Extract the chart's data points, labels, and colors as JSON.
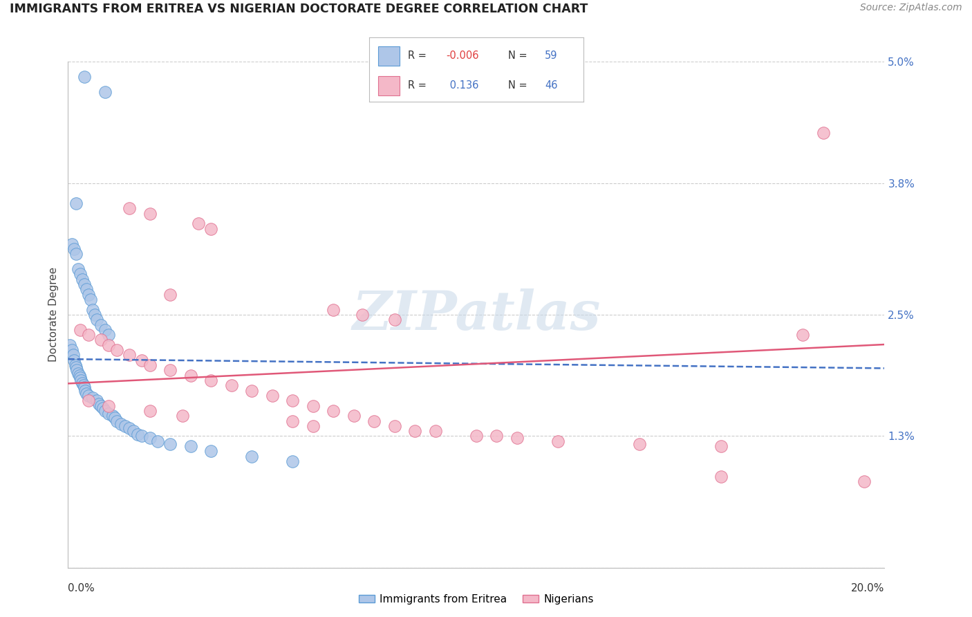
{
  "title": "IMMIGRANTS FROM ERITREA VS NIGERIAN DOCTORATE DEGREE CORRELATION CHART",
  "source": "Source: ZipAtlas.com",
  "ylabel": "Doctorate Degree",
  "xmin": 0.0,
  "xmax": 20.0,
  "ymin": 0.0,
  "ymax": 5.0,
  "yticks": [
    0.0,
    1.3,
    2.5,
    3.8,
    5.0
  ],
  "ytick_labels": [
    "",
    "1.3%",
    "2.5%",
    "3.8%",
    "5.0%"
  ],
  "legend_label1": "Immigrants from Eritrea",
  "legend_label2": "Nigerians",
  "watermark_text": "ZIPatlas",
  "blue_fill": "#aec6e8",
  "pink_fill": "#f4b8c8",
  "blue_edge": "#5b9bd5",
  "pink_edge": "#e07090",
  "blue_line": "#4472C4",
  "pink_line": "#e05878",
  "grid_color": "#cccccc",
  "bg_color": "#ffffff",
  "eritrea_x": [
    0.4,
    0.9,
    0.2,
    0.1,
    0.15,
    0.2,
    0.25,
    0.3,
    0.35,
    0.4,
    0.45,
    0.5,
    0.55,
    0.6,
    0.65,
    0.7,
    0.8,
    0.9,
    1.0,
    0.05,
    0.1,
    0.12,
    0.15,
    0.18,
    0.2,
    0.22,
    0.25,
    0.28,
    0.3,
    0.32,
    0.35,
    0.38,
    0.4,
    0.42,
    0.45,
    0.5,
    0.6,
    0.7,
    0.75,
    0.8,
    0.85,
    0.9,
    1.0,
    1.1,
    1.15,
    1.2,
    1.3,
    1.4,
    1.5,
    1.6,
    1.7,
    1.8,
    2.0,
    2.2,
    2.5,
    3.0,
    3.5,
    4.5,
    5.5
  ],
  "eritrea_y": [
    4.85,
    4.7,
    3.6,
    3.2,
    3.15,
    3.1,
    2.95,
    2.9,
    2.85,
    2.8,
    2.75,
    2.7,
    2.65,
    2.55,
    2.5,
    2.45,
    2.4,
    2.35,
    2.3,
    2.2,
    2.15,
    2.1,
    2.05,
    2.0,
    1.98,
    1.95,
    1.92,
    1.9,
    1.88,
    1.85,
    1.82,
    1.8,
    1.78,
    1.75,
    1.72,
    1.7,
    1.68,
    1.65,
    1.62,
    1.6,
    1.58,
    1.55,
    1.52,
    1.5,
    1.48,
    1.45,
    1.42,
    1.4,
    1.38,
    1.35,
    1.32,
    1.3,
    1.28,
    1.25,
    1.22,
    1.2,
    1.15,
    1.1,
    1.05
  ],
  "nigerian_x": [
    18.5,
    1.5,
    2.0,
    3.2,
    3.5,
    2.5,
    6.5,
    7.2,
    8.0,
    0.3,
    0.5,
    0.8,
    1.0,
    1.2,
    1.5,
    1.8,
    2.0,
    2.5,
    3.0,
    3.5,
    4.0,
    4.5,
    5.0,
    5.5,
    6.0,
    6.5,
    7.0,
    7.5,
    8.0,
    9.0,
    10.0,
    11.0,
    12.0,
    14.0,
    16.0,
    18.0,
    0.5,
    1.0,
    2.0,
    2.8,
    5.5,
    6.0,
    8.5,
    10.5,
    16.0,
    19.5
  ],
  "nigerian_y": [
    4.3,
    3.55,
    3.5,
    3.4,
    3.35,
    2.7,
    2.55,
    2.5,
    2.45,
    2.35,
    2.3,
    2.25,
    2.2,
    2.15,
    2.1,
    2.05,
    2.0,
    1.95,
    1.9,
    1.85,
    1.8,
    1.75,
    1.7,
    1.65,
    1.6,
    1.55,
    1.5,
    1.45,
    1.4,
    1.35,
    1.3,
    1.28,
    1.25,
    1.22,
    1.2,
    2.3,
    1.65,
    1.6,
    1.55,
    1.5,
    1.45,
    1.4,
    1.35,
    1.3,
    0.9,
    0.85
  ]
}
